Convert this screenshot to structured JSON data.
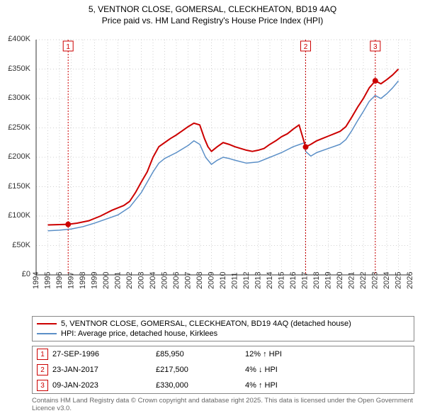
{
  "title_line1": "5, VENTNOR CLOSE, GOMERSAL, CLECKHEATON, BD19 4AQ",
  "title_line2": "Price paid vs. HM Land Registry's House Price Index (HPI)",
  "chart": {
    "type": "line",
    "background_color": "#ffffff",
    "grid_color": "#d0d0d0",
    "axis_color": "#333333",
    "label_fontsize": 11,
    "x_years": [
      1994,
      1995,
      1996,
      1997,
      1998,
      1999,
      2000,
      2001,
      2002,
      2003,
      2004,
      2005,
      2006,
      2007,
      2008,
      2009,
      2010,
      2011,
      2012,
      2013,
      2014,
      2015,
      2016,
      2017,
      2018,
      2019,
      2020,
      2021,
      2022,
      2023,
      2024,
      2025,
      2026
    ],
    "xlim": [
      1994,
      2026
    ],
    "ylim": [
      0,
      400000
    ],
    "ytick_step": 50000,
    "ytick_labels": [
      "£0",
      "£50K",
      "£100K",
      "£150K",
      "£200K",
      "£250K",
      "£300K",
      "£350K",
      "£400K"
    ],
    "series": [
      {
        "name": "price_paid",
        "label": "5, VENTNOR CLOSE, GOMERSAL, CLECKHEATON, BD19 4AQ (detached house)",
        "color": "#cc0000",
        "line_width": 2,
        "points": [
          [
            1995.0,
            85000
          ],
          [
            1996.74,
            85950
          ],
          [
            1997.5,
            88000
          ],
          [
            1998.5,
            92000
          ],
          [
            1999.5,
            100000
          ],
          [
            2000.5,
            110000
          ],
          [
            2001.5,
            118000
          ],
          [
            2002.0,
            125000
          ],
          [
            2002.5,
            140000
          ],
          [
            2003.0,
            158000
          ],
          [
            2003.5,
            175000
          ],
          [
            2004.0,
            200000
          ],
          [
            2004.5,
            218000
          ],
          [
            2005.0,
            225000
          ],
          [
            2005.5,
            232000
          ],
          [
            2006.0,
            238000
          ],
          [
            2006.5,
            245000
          ],
          [
            2007.0,
            252000
          ],
          [
            2007.5,
            258000
          ],
          [
            2008.0,
            255000
          ],
          [
            2008.4,
            232000
          ],
          [
            2008.7,
            218000
          ],
          [
            2009.0,
            210000
          ],
          [
            2009.5,
            218000
          ],
          [
            2010.0,
            225000
          ],
          [
            2010.5,
            222000
          ],
          [
            2011.0,
            218000
          ],
          [
            2011.5,
            215000
          ],
          [
            2012.0,
            212000
          ],
          [
            2012.5,
            210000
          ],
          [
            2013.0,
            212000
          ],
          [
            2013.5,
            215000
          ],
          [
            2014.0,
            222000
          ],
          [
            2014.5,
            228000
          ],
          [
            2015.0,
            235000
          ],
          [
            2015.5,
            240000
          ],
          [
            2016.0,
            248000
          ],
          [
            2016.5,
            255000
          ],
          [
            2017.06,
            217500
          ],
          [
            2017.5,
            222000
          ],
          [
            2018.0,
            228000
          ],
          [
            2018.5,
            232000
          ],
          [
            2019.0,
            236000
          ],
          [
            2019.5,
            240000
          ],
          [
            2020.0,
            244000
          ],
          [
            2020.5,
            252000
          ],
          [
            2021.0,
            268000
          ],
          [
            2021.5,
            285000
          ],
          [
            2022.0,
            300000
          ],
          [
            2022.5,
            318000
          ],
          [
            2023.02,
            330000
          ],
          [
            2023.5,
            325000
          ],
          [
            2024.0,
            332000
          ],
          [
            2024.5,
            340000
          ],
          [
            2025.0,
            350000
          ]
        ]
      },
      {
        "name": "hpi",
        "label": "HPI: Average price, detached house, Kirklees",
        "color": "#5b8fc7",
        "line_width": 1.5,
        "points": [
          [
            1995.0,
            75000
          ],
          [
            1996.0,
            76000
          ],
          [
            1997.0,
            78000
          ],
          [
            1998.0,
            82000
          ],
          [
            1999.0,
            88000
          ],
          [
            2000.0,
            95000
          ],
          [
            2001.0,
            102000
          ],
          [
            2002.0,
            115000
          ],
          [
            2003.0,
            140000
          ],
          [
            2004.0,
            175000
          ],
          [
            2004.5,
            190000
          ],
          [
            2005.0,
            198000
          ],
          [
            2006.0,
            208000
          ],
          [
            2007.0,
            220000
          ],
          [
            2007.5,
            228000
          ],
          [
            2008.0,
            222000
          ],
          [
            2008.5,
            200000
          ],
          [
            2009.0,
            188000
          ],
          [
            2009.5,
            195000
          ],
          [
            2010.0,
            200000
          ],
          [
            2010.5,
            198000
          ],
          [
            2011.0,
            195000
          ],
          [
            2012.0,
            190000
          ],
          [
            2013.0,
            192000
          ],
          [
            2014.0,
            200000
          ],
          [
            2015.0,
            208000
          ],
          [
            2016.0,
            218000
          ],
          [
            2017.0,
            225000
          ],
          [
            2017.06,
            210000
          ],
          [
            2017.5,
            202000
          ],
          [
            2018.0,
            208000
          ],
          [
            2019.0,
            215000
          ],
          [
            2020.0,
            222000
          ],
          [
            2020.5,
            230000
          ],
          [
            2021.0,
            245000
          ],
          [
            2021.5,
            262000
          ],
          [
            2022.0,
            278000
          ],
          [
            2022.5,
            295000
          ],
          [
            2023.0,
            305000
          ],
          [
            2023.5,
            300000
          ],
          [
            2024.0,
            308000
          ],
          [
            2024.5,
            318000
          ],
          [
            2025.0,
            330000
          ]
        ]
      }
    ],
    "markers": [
      {
        "n": "1",
        "x": 1996.74,
        "y": 85950,
        "line_color": "#cc0000",
        "dot_color": "#cc0000"
      },
      {
        "n": "2",
        "x": 2017.06,
        "y": 217500,
        "line_color": "#cc0000",
        "dot_color": "#cc0000"
      },
      {
        "n": "3",
        "x": 2023.02,
        "y": 330000,
        "line_color": "#cc0000",
        "dot_color": "#cc0000"
      }
    ]
  },
  "legend": {
    "item1": "5, VENTNOR CLOSE, GOMERSAL, CLECKHEATON, BD19 4AQ (detached house)",
    "item2": "HPI: Average price, detached house, Kirklees"
  },
  "sales": [
    {
      "n": "1",
      "date": "27-SEP-1996",
      "price": "£85,950",
      "pct": "12% ↑ HPI"
    },
    {
      "n": "2",
      "date": "23-JAN-2017",
      "price": "£217,500",
      "pct": "4% ↓ HPI"
    },
    {
      "n": "3",
      "date": "09-JAN-2023",
      "price": "£330,000",
      "pct": "4% ↑ HPI"
    }
  ],
  "footer": "Contains HM Land Registry data © Crown copyright and database right 2025. This data is licensed under the Open Government Licence v3.0.",
  "colors": {
    "marker_border": "#cc0000"
  }
}
